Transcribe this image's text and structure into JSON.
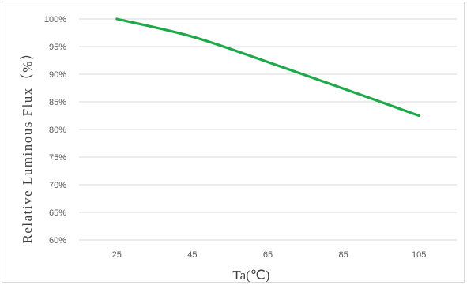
{
  "chart_data": {
    "type": "line",
    "xlabel": "Ta(℃)",
    "ylabel": "Relative Luminous Flux（%）",
    "x": [
      25,
      45,
      65,
      85,
      105
    ],
    "x_tick_labels": [
      "25",
      "45",
      "65",
      "85",
      "105"
    ],
    "ylim": [
      60,
      100
    ],
    "y_ticks": [
      60,
      65,
      70,
      75,
      80,
      85,
      90,
      95,
      100
    ],
    "y_tick_labels": [
      "60%",
      "65%",
      "70%",
      "75%",
      "80%",
      "85%",
      "90%",
      "95%",
      "100%"
    ],
    "grid": true,
    "legend": "none",
    "series": [
      {
        "values": [
          100,
          96.8,
          92.2,
          87.4,
          82.5
        ],
        "color": "#1ea84a"
      }
    ]
  }
}
